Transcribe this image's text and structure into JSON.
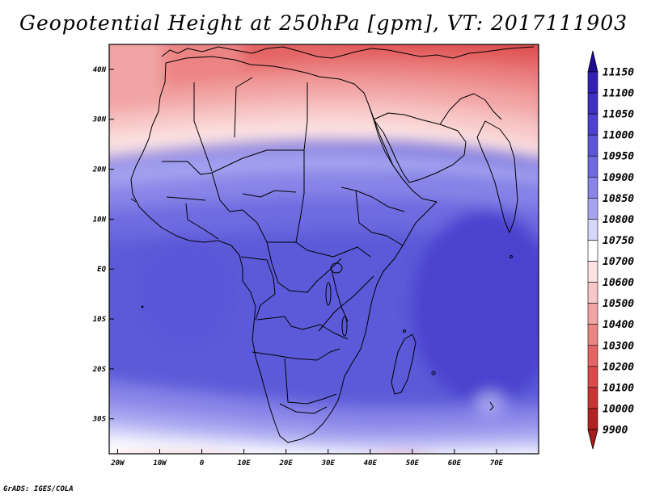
{
  "title": "Geopotential Height at 250hPa [gpm], VT: 2017111903",
  "footer": "GrADS: IGES/COLA",
  "map": {
    "projection": "latlon",
    "lon_range": [
      -22,
      80
    ],
    "lat_range": [
      -37,
      45
    ],
    "variable": "Geopotential height 250hPa",
    "units": "gpm",
    "valid_time": "2017111903",
    "lat_ticks": [
      {
        "value": 40,
        "label": "40N"
      },
      {
        "value": 30,
        "label": "30N"
      },
      {
        "value": 20,
        "label": "20N"
      },
      {
        "value": 10,
        "label": "10N"
      },
      {
        "value": 0,
        "label": "EQ"
      },
      {
        "value": -10,
        "label": "10S"
      },
      {
        "value": -20,
        "label": "20S"
      },
      {
        "value": -30,
        "label": "30S"
      }
    ],
    "lon_ticks": [
      {
        "value": -20,
        "label": "20W"
      },
      {
        "value": -10,
        "label": "10W"
      },
      {
        "value": 0,
        "label": "0"
      },
      {
        "value": 10,
        "label": "10E"
      },
      {
        "value": 20,
        "label": "20E"
      },
      {
        "value": 30,
        "label": "30E"
      },
      {
        "value": 40,
        "label": "40E"
      },
      {
        "value": 50,
        "label": "50E"
      },
      {
        "value": 60,
        "label": "60E"
      },
      {
        "value": 70,
        "label": "70E"
      }
    ]
  },
  "colorbar": {
    "levels": [
      {
        "label": "11150",
        "color": "#2a14a6"
      },
      {
        "label": "11100",
        "color": "#3420b4"
      },
      {
        "label": "11050",
        "color": "#3e30c2"
      },
      {
        "label": "11000",
        "color": "#4c42cf"
      },
      {
        "label": "10950",
        "color": "#5a56d8"
      },
      {
        "label": "10900",
        "color": "#6e6ae0"
      },
      {
        "label": "10850",
        "color": "#8884e8"
      },
      {
        "label": "10800",
        "color": "#a6a4f0"
      },
      {
        "label": "10750",
        "color": "#d6d6fa"
      },
      {
        "label": "10700",
        "color": "#ffffff"
      },
      {
        "label": "10600",
        "color": "#fce2e2"
      },
      {
        "label": "10500",
        "color": "#f8c6c6"
      },
      {
        "label": "10400",
        "color": "#f2a4a4"
      },
      {
        "label": "10300",
        "color": "#ec8484"
      },
      {
        "label": "10200",
        "color": "#e46464"
      },
      {
        "label": "10100",
        "color": "#dc4a4a"
      },
      {
        "label": "10000",
        "color": "#cc3434"
      },
      {
        "label": "9900",
        "color": "#b22222"
      }
    ],
    "top_arrow_color": "#1e0c94",
    "bottom_arrow_color": "#a81c1c"
  }
}
